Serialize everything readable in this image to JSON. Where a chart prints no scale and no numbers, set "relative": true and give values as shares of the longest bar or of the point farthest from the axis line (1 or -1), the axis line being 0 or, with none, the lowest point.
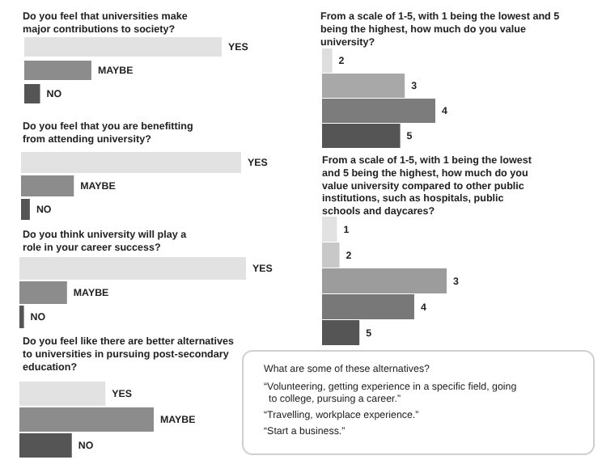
{
  "chart_data": [
    {
      "type": "bar",
      "orientation": "horizontal",
      "relative": true,
      "title": "Do you feel that universities make major contributions to society?",
      "categories": [
        "YES",
        "MAYBE",
        "NO"
      ],
      "values": [
        1,
        0.34,
        0.08
      ],
      "colors": [
        "#e2e2e2",
        "#8c8c8c",
        "#555555"
      ]
    },
    {
      "type": "bar",
      "orientation": "horizontal",
      "relative": true,
      "title": "Do you feel that you are benefitting from attending university?",
      "categories": [
        "YES",
        "MAYBE",
        "NO"
      ],
      "values": [
        1,
        0.24,
        0.04
      ],
      "colors": [
        "#e2e2e2",
        "#8c8c8c",
        "#555555"
      ]
    },
    {
      "type": "bar",
      "orientation": "horizontal",
      "relative": true,
      "title": "Do you think university will play a role in your career success?",
      "categories": [
        "YES",
        "MAYBE",
        "NO"
      ],
      "values": [
        1,
        0.21,
        0.02
      ],
      "colors": [
        "#e2e2e2",
        "#8c8c8c",
        "#555555"
      ]
    },
    {
      "type": "bar",
      "orientation": "horizontal",
      "relative": true,
      "title": "Do you feel like there are better alternatives to universities in pursuing post-secondary education?",
      "categories": [
        "YES",
        "MAYBE",
        "NO"
      ],
      "values": [
        0.64,
        1,
        0.39
      ],
      "colors": [
        "#e2e2e2",
        "#8c8c8c",
        "#555555"
      ]
    },
    {
      "type": "bar",
      "orientation": "horizontal",
      "relative": true,
      "title": "From a scale of 1-5, with 1 being the lowest and 5 being the highest, how much do you value university?",
      "categories": [
        "2",
        "3",
        "4",
        "5"
      ],
      "values": [
        0.09,
        0.73,
        1,
        0.69
      ],
      "colors": [
        "#dedede",
        "#a8a8a8",
        "#7c7c7c",
        "#555555"
      ]
    },
    {
      "type": "bar",
      "orientation": "horizontal",
      "relative": true,
      "title": "From a scale of 1-5, with 1 being the lowest and 5 being the highest, how much do you value university compared to other public institutions, such as hospitals, public schools and daycares?",
      "categories": [
        "1",
        "2",
        "3",
        "4",
        "5"
      ],
      "values": [
        0.12,
        0.14,
        1,
        0.74,
        0.3
      ],
      "colors": [
        "#e2e2e2",
        "#c8c8c8",
        "#9c9c9c",
        "#787878",
        "#555555"
      ]
    },
    {
      "type": "other",
      "title": "What are some of these alternatives?",
      "annotations": [
        "“Volunteering, getting experience in a specific field, going to college, pursuing a career.”",
        "“Travelling, workplace experience.”",
        "“Start a business.”"
      ]
    }
  ]
}
